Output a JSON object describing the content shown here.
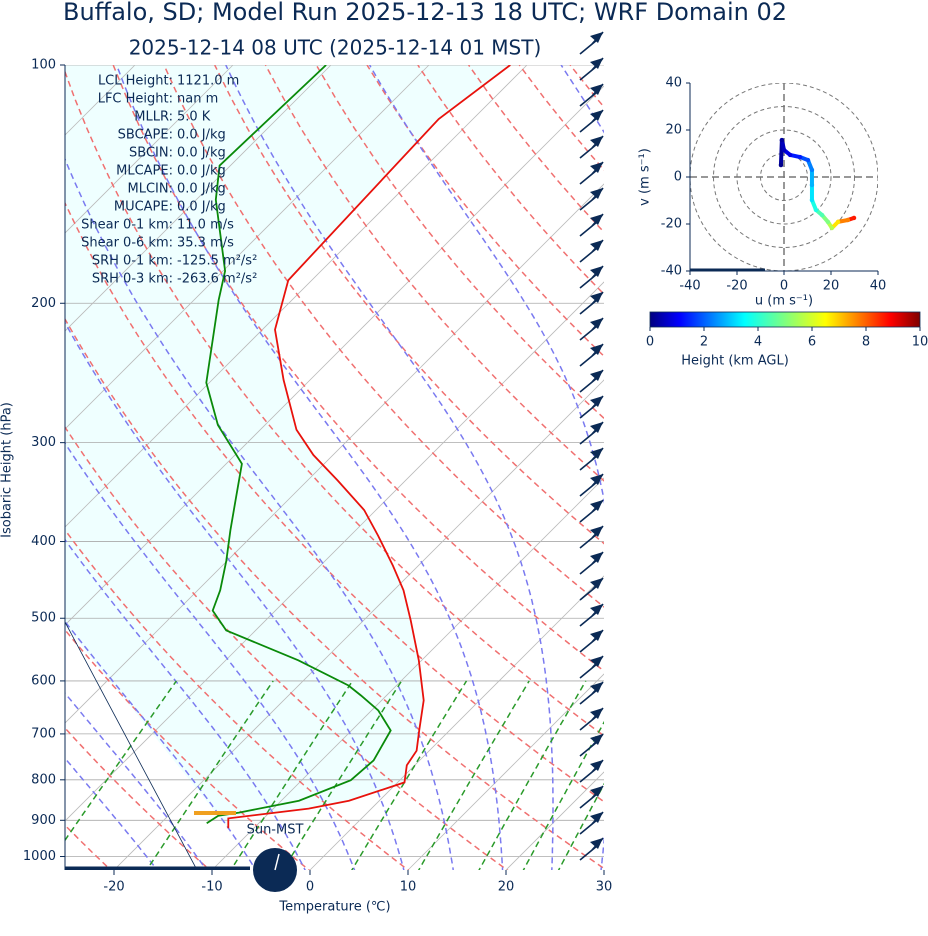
{
  "chart_data": [
    {
      "type": "skewt",
      "title": "Buffalo, SD; Model Run 2025-12-13 18 UTC; WRF Domain 02",
      "subtitle": "2025-12-14 08 UTC  (2025-12-14 01 MST)",
      "x_label": "Temperature (℃)",
      "y_label": "Isobaric Height (hPa)",
      "xlim": [
        -25,
        30
      ],
      "xticks": [
        -20,
        -10,
        0,
        10,
        20,
        30
      ],
      "ylim": [
        1040,
        100
      ],
      "yticks": [
        100,
        200,
        300,
        400,
        500,
        600,
        700,
        800,
        900,
        1000
      ],
      "log_y": true,
      "grid": true,
      "series": [
        {
          "color": "#e8120c",
          "pressure": [
            100,
            117,
            187,
            216,
            250,
            289,
            311,
            335,
            365,
            393,
            429,
            461,
            503,
            565,
            635,
            693,
            735,
            767,
            806,
            850,
            870,
            895,
            921
          ],
          "values": [
            -61.7,
            -63.5,
            -62.4,
            -58.7,
            -52.7,
            -46.3,
            -42,
            -36.9,
            -31.2,
            -27.2,
            -22.6,
            -19,
            -15.2,
            -10.3,
            -5.7,
            -3.1,
            -1.3,
            -0.8,
            0.7,
            -3.1,
            -6.4,
            -13.6,
            -12.6
          ]
        },
        {
          "color": "#0a8a0a",
          "pressure": [
            100,
            134,
            148,
            182,
            198,
            252,
            285,
            319,
            355,
            387,
            423,
            461,
            489,
            518,
            565,
            608,
            626,
            654,
            693,
            756,
            801,
            850,
            880,
            888,
            908
          ],
          "values": [
            -80.5,
            -81.1,
            -78,
            -69.8,
            -67.5,
            -60.3,
            -54.8,
            -48.4,
            -45.3,
            -42.8,
            -40.1,
            -37.7,
            -36.4,
            -33,
            -22.6,
            -14.9,
            -12.6,
            -9.3,
            -6,
            -4.7,
            -5,
            -8.2,
            -13.1,
            -14.9,
            -15.3
          ]
        }
      ],
      "annotations": [
        {
          "label": "LCL Height:",
          "value": "1121.0 m"
        },
        {
          "label": "LFC Height:",
          "value": "nan m"
        },
        {
          "label": "MLLR:",
          "value": "5.0 K"
        },
        {
          "label": "SBCAPE:",
          "value": "0.0 J/kg"
        },
        {
          "label": "SBCIN:",
          "value": "0.0 J/kg"
        },
        {
          "label": "MLCAPE:",
          "value": "0.0 J/kg"
        },
        {
          "label": "MLCIN:",
          "value": "0.0 J/kg"
        },
        {
          "label": "MUCAPE:",
          "value": "0.0 J/kg"
        },
        {
          "label": "Shear 0-1 km:",
          "value": "11.0 m/s"
        },
        {
          "label": "Shear 0-6 km:",
          "value": "35.3 m/s"
        },
        {
          "label": "SRH 0-1 km:",
          "value": "-125.5 m²/s²"
        },
        {
          "label": "SRH 0-3 km:",
          "value": "-263.6 m²/s²"
        }
      ],
      "clock_label": "Sun-MST"
    },
    {
      "type": "hodograph",
      "x_label": "u (m s⁻¹)",
      "y_label": "v (m s⁻¹)",
      "xlim": [
        -40,
        40
      ],
      "xticks": [
        -40,
        -20,
        0,
        20,
        40
      ],
      "ylim": [
        -40,
        40
      ],
      "yticks": [
        -40,
        -20,
        0,
        20,
        40
      ],
      "u": [
        -1.3,
        -0.9,
        0,
        2.6,
        6.8,
        10.2,
        11.9,
        11.9,
        11.9,
        13.6,
        16.2,
        18.7,
        20.4,
        23,
        27.2,
        29.8
      ],
      "v": [
        5.1,
        15.7,
        11.5,
        9.4,
        8.5,
        7.2,
        3,
        -3.4,
        -9.8,
        -14,
        -16.2,
        -19.1,
        -21.7,
        -19.1,
        -18.3,
        -17.4
      ],
      "heights_km": [
        0.1,
        0.3,
        0.6,
        1,
        1.5,
        2,
        2.5,
        3,
        3.5,
        4,
        4.5,
        5,
        5.5,
        6.5,
        7.5,
        8.5
      ],
      "colorbar": {
        "label": "Height (km AGL)",
        "lim": [
          0,
          10
        ],
        "ticks": [
          0,
          2,
          4,
          6,
          8,
          10
        ]
      }
    }
  ]
}
